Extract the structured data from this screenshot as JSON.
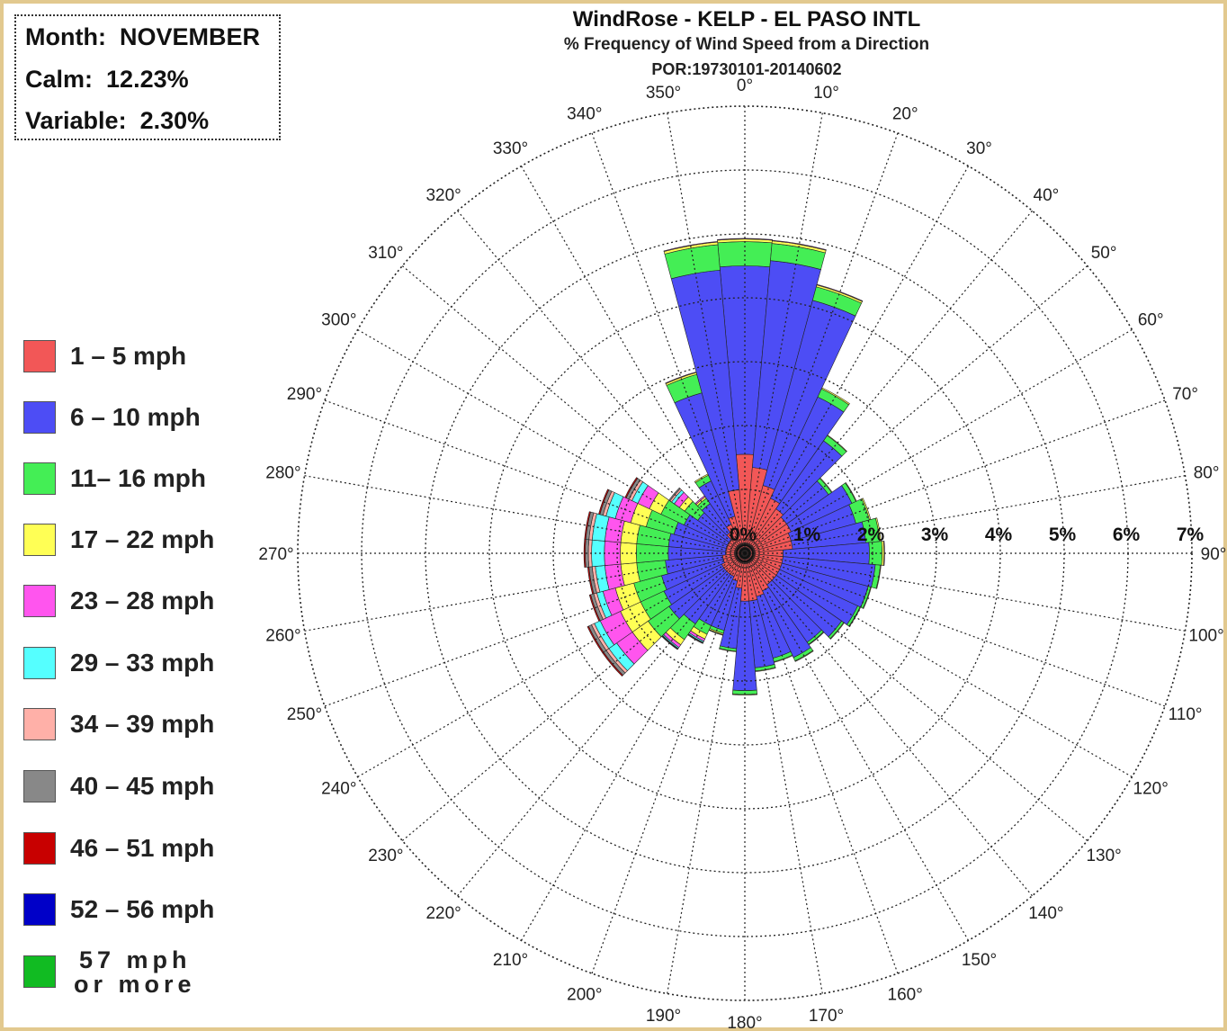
{
  "info": {
    "month_label": "Month:",
    "month_value": "NOVEMBER",
    "calm_label": "Calm:",
    "calm_value": "12.23%",
    "variable_label": "Variable:",
    "variable_value": "2.30%"
  },
  "chart_data": {
    "type": "windrose",
    "title": "WindRose - KELP - EL PASO INTL",
    "subtitle": "% Frequency of Wind Speed from a Direction",
    "period": "POR:19730101-20140602",
    "radial_ticks": [
      "0%",
      "1%",
      "2%",
      "3%",
      "4%",
      "5%",
      "6%",
      "7%"
    ],
    "radial_max": 7,
    "direction_labels": [
      "0°",
      "10°",
      "20°",
      "30°",
      "40°",
      "50°",
      "60°",
      "70°",
      "80°",
      "90°",
      "100°",
      "110°",
      "120°",
      "130°",
      "140°",
      "150°",
      "160°",
      "170°",
      "180°",
      "190°",
      "200°",
      "210°",
      "220°",
      "230°",
      "240°",
      "250°",
      "260°",
      "270°",
      "280°",
      "290°",
      "300°",
      "310°",
      "320°",
      "330°",
      "340°",
      "350°"
    ],
    "grid": true,
    "legend_placement": "left",
    "speed_bins": [
      {
        "label": "1 – 5 mph",
        "color": "#f25757"
      },
      {
        "label": "6 – 10 mph",
        "color": "#4d4df5"
      },
      {
        "label": "11– 16 mph",
        "color": "#44ee55"
      },
      {
        "label": "17 – 22 mph",
        "color": "#ffff55"
      },
      {
        "label": "23 – 28 mph",
        "color": "#ff55ee"
      },
      {
        "label": "29 – 33 mph",
        "color": "#55ffff"
      },
      {
        "label": "34 – 39 mph",
        "color": "#ffb0a8"
      },
      {
        "label": "40 – 45 mph",
        "color": "#888888"
      },
      {
        "label": "46 – 51 mph",
        "color": "#c80000"
      },
      {
        "label": "52 – 56 mph",
        "color": "#0000c8"
      },
      {
        "label": "57  mph or more",
        "color": "#11bb22"
      }
    ],
    "directions_deg": [
      0,
      10,
      20,
      30,
      40,
      50,
      60,
      70,
      80,
      90,
      100,
      110,
      120,
      130,
      140,
      150,
      160,
      170,
      180,
      190,
      200,
      210,
      220,
      230,
      240,
      250,
      260,
      270,
      280,
      290,
      300,
      310,
      320,
      330,
      340,
      350
    ],
    "frequencies": [
      [
        1.55,
        2.95,
        0.38,
        0.04,
        0.01,
        0,
        0,
        0,
        0,
        0,
        0
      ],
      [
        1.35,
        3.25,
        0.27,
        0.04,
        0.01,
        0,
        0,
        0,
        0,
        0,
        0
      ],
      [
        1.1,
        3.0,
        0.22,
        0.03,
        0.01,
        0,
        0,
        0,
        0,
        0,
        0
      ],
      [
        0.95,
        1.75,
        0.14,
        0.02,
        0,
        0,
        0,
        0,
        0,
        0,
        0
      ],
      [
        0.85,
        1.3,
        0.1,
        0.01,
        0,
        0,
        0,
        0,
        0,
        0,
        0
      ],
      [
        0.8,
        0.8,
        0.06,
        0.01,
        0,
        0,
        0,
        0,
        0,
        0,
        0
      ],
      [
        0.8,
        1.05,
        0.07,
        0.01,
        0,
        0,
        0,
        0,
        0,
        0,
        0
      ],
      [
        0.75,
        1.05,
        0.22,
        0.02,
        0,
        0,
        0,
        0,
        0,
        0,
        0
      ],
      [
        0.75,
        1.15,
        0.22,
        0.02,
        0,
        0,
        0,
        0,
        0,
        0,
        0
      ],
      [
        0.6,
        1.35,
        0.2,
        0.03,
        0.01,
        0,
        0,
        0,
        0,
        0,
        0
      ],
      [
        0.6,
        1.45,
        0.08,
        0.01,
        0,
        0,
        0,
        0,
        0,
        0,
        0
      ],
      [
        0.6,
        1.4,
        0.04,
        0.01,
        0,
        0,
        0,
        0,
        0,
        0,
        0
      ],
      [
        0.6,
        1.35,
        0.04,
        0.01,
        0,
        0,
        0,
        0,
        0,
        0,
        0
      ],
      [
        0.6,
        1.25,
        0.04,
        0.01,
        0,
        0,
        0,
        0,
        0,
        0,
        0
      ],
      [
        0.6,
        1.1,
        0.04,
        0.01,
        0,
        0,
        0,
        0,
        0,
        0,
        0
      ],
      [
        0.65,
        1.15,
        0.06,
        0.01,
        0,
        0,
        0,
        0,
        0,
        0,
        0
      ],
      [
        0.7,
        1.0,
        0.06,
        0.01,
        0,
        0,
        0,
        0,
        0,
        0,
        0
      ],
      [
        0.75,
        1.05,
        0.05,
        0.01,
        0,
        0,
        0,
        0,
        0,
        0,
        0
      ],
      [
        0.75,
        1.4,
        0.06,
        0.01,
        0,
        0,
        0,
        0,
        0,
        0,
        0
      ],
      [
        0.55,
        0.95,
        0.04,
        0.01,
        0,
        0,
        0,
        0,
        0,
        0,
        0
      ],
      [
        0.45,
        0.8,
        0.05,
        0.02,
        0.01,
        0,
        0,
        0,
        0,
        0,
        0
      ],
      [
        0.4,
        0.85,
        0.15,
        0.08,
        0.04,
        0.02,
        0.01,
        0.01,
        0,
        0,
        0
      ],
      [
        0.4,
        0.95,
        0.3,
        0.1,
        0.05,
        0.02,
        0.01,
        0.01,
        0,
        0,
        0
      ],
      [
        0.4,
        1.05,
        0.4,
        0.3,
        0.3,
        0.15,
        0.05,
        0.05,
        0.02,
        0,
        0
      ],
      [
        0.4,
        1.0,
        0.4,
        0.35,
        0.35,
        0.1,
        0.05,
        0.05,
        0.02,
        0,
        0
      ],
      [
        0.35,
        1.0,
        0.45,
        0.3,
        0.2,
        0.1,
        0.05,
        0.05,
        0.02,
        0,
        0
      ],
      [
        0.35,
        0.9,
        0.45,
        0.25,
        0.25,
        0.15,
        0.05,
        0.05,
        0.02,
        0,
        0
      ],
      [
        0.3,
        0.9,
        0.5,
        0.25,
        0.25,
        0.2,
        0.05,
        0.05,
        0.02,
        0,
        0
      ],
      [
        0.3,
        0.9,
        0.5,
        0.25,
        0.25,
        0.2,
        0.05,
        0.05,
        0.02,
        0,
        0
      ],
      [
        0.3,
        0.85,
        0.45,
        0.25,
        0.25,
        0.15,
        0.05,
        0.05,
        0.02,
        0,
        0
      ],
      [
        0.3,
        0.75,
        0.4,
        0.2,
        0.2,
        0.1,
        0.05,
        0.05,
        0.02,
        0,
        0
      ],
      [
        0.3,
        0.6,
        0.25,
        0.1,
        0.1,
        0.05,
        0.03,
        0.02,
        0,
        0,
        0
      ],
      [
        0.4,
        0.55,
        0.1,
        0.03,
        0.02,
        0,
        0,
        0,
        0,
        0,
        0
      ],
      [
        0.5,
        0.75,
        0.1,
        0.02,
        0,
        0,
        0,
        0,
        0,
        0,
        0
      ],
      [
        0.6,
        2.0,
        0.3,
        0.03,
        0.01,
        0,
        0,
        0,
        0,
        0,
        0
      ],
      [
        1.0,
        3.45,
        0.4,
        0.04,
        0.01,
        0,
        0,
        0,
        0,
        0,
        0
      ]
    ]
  }
}
